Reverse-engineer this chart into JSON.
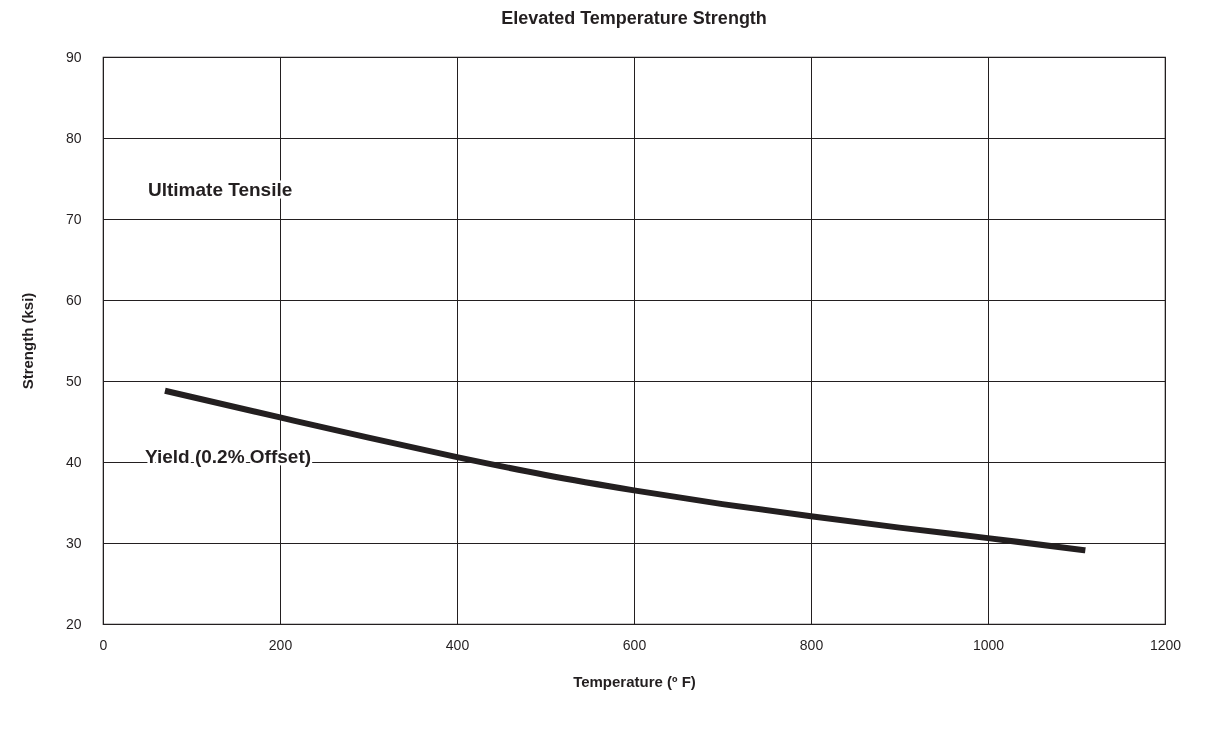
{
  "chart_data": {
    "type": "line",
    "title": "Elevated Temperature Strength",
    "xlabel": "Temperature (º F)",
    "ylabel": "Strength (ksi)",
    "xlim": [
      0,
      1200
    ],
    "xticks": [
      0,
      200,
      400,
      600,
      800,
      1000,
      1200
    ],
    "ylim": [
      20,
      90
    ],
    "yticks": [
      20,
      30,
      40,
      50,
      60,
      70,
      80,
      90
    ],
    "grid": true,
    "annotations": [
      "Ultimate Tensile"
    ],
    "series": [
      {
        "name": "Yield (0.2% Offset)",
        "color": "#231f20",
        "x": [
          70,
          200,
          300,
          400,
          500,
          600,
          700,
          800,
          900,
          1000,
          1110
        ],
        "values": [
          48.8,
          45.5,
          43,
          40.6,
          38.4,
          36.5,
          34.8,
          33.3,
          31.9,
          30.6,
          29.1
        ]
      }
    ]
  }
}
